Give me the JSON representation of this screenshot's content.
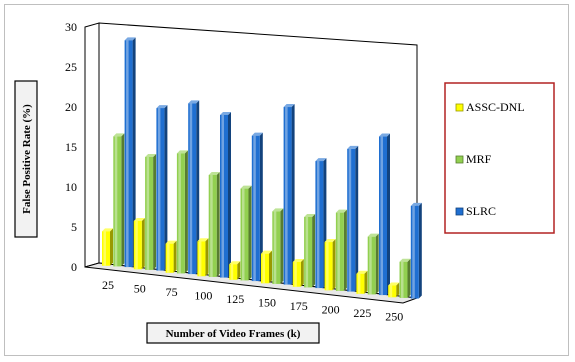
{
  "chart_data": {
    "type": "bar",
    "categories": [
      "25",
      "50",
      "75",
      "100",
      "125",
      "150",
      "175",
      "200",
      "225",
      "250"
    ],
    "series": [
      {
        "name": "ASSC-DNL",
        "values": [
          4.3,
          6.0,
          3.6,
          4.3,
          1.9,
          3.6,
          3.0,
          5.8,
          2.4,
          1.4
        ],
        "color": "#ffff00"
      },
      {
        "name": "MRF",
        "values": [
          16.2,
          14.0,
          14.8,
          12.5,
          11.2,
          8.8,
          8.5,
          9.4,
          6.9,
          4.3
        ],
        "color": "#92d050"
      },
      {
        "name": "SLRC",
        "values": [
          28.2,
          20.1,
          21.0,
          19.9,
          17.7,
          21.5,
          15.3,
          17.1,
          18.9,
          11.0
        ],
        "color": "#1f6fd1"
      }
    ],
    "ylabel": "False Positive Rate (%)",
    "xlabel": "Number of Video Frames (k)",
    "ylim": [
      0,
      30
    ],
    "yticks": [
      "0",
      "5",
      "10",
      "15",
      "20",
      "25",
      "30"
    ],
    "legend_position": "right",
    "grid": false
  }
}
